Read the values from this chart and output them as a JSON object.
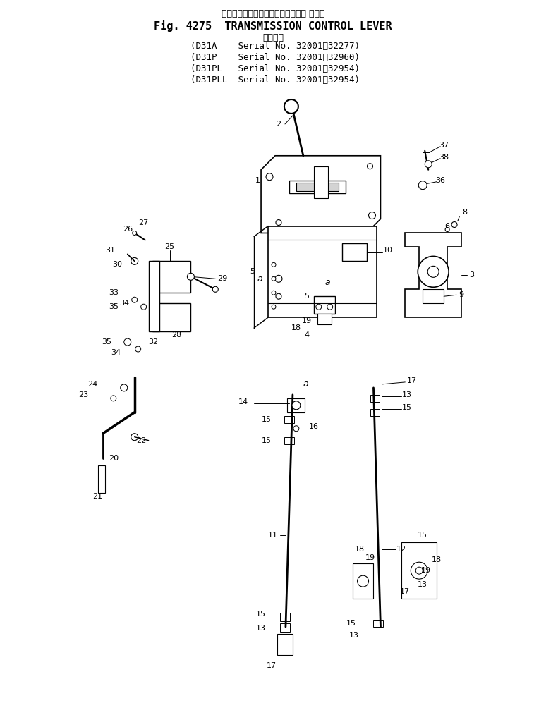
{
  "title_japanese": "トランスミッション　コントロール レバー",
  "title_english": "Fig. 4275  TRANSMISSION CONTROL LEVER",
  "subtitle_japanese": "適用号機",
  "models": [
    "(D31A    Serial No. 32001～32277)",
    "(D31P    Serial No. 32001～32960)",
    "(D31PL   Serial No. 32001～32954)",
    "(D31PLL  Serial No. 32001～32954)"
  ],
  "bg_color": "#ffffff",
  "line_color": "#000000",
  "fig_width": 7.74,
  "fig_height": 10.14
}
